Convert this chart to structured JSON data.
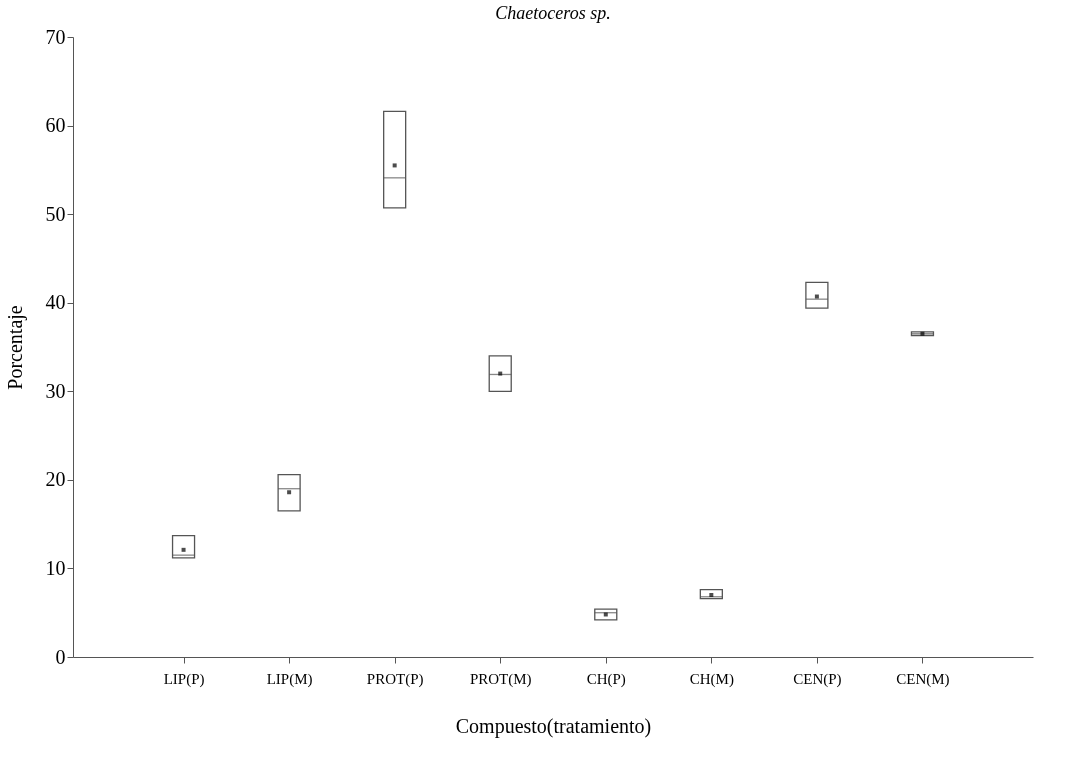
{
  "chart_data": {
    "type": "box",
    "title": "Chaetoceros sp.",
    "xlabel": "Compuesto(tratamiento)",
    "ylabel": "Porcentaje",
    "categories": [
      "LIP(P)",
      "LIP(M)",
      "PROT(P)",
      "PROT(M)",
      "CH(P)",
      "CH(M)",
      "CEN(P)",
      "CEN(M)"
    ],
    "boxes": [
      {
        "low": 11.2,
        "q1": 11.2,
        "median": 11.5,
        "q3": 13.7,
        "high": 13.7,
        "mean": 12.1
      },
      {
        "low": 16.5,
        "q1": 16.5,
        "median": 19.0,
        "q3": 20.6,
        "high": 20.6,
        "mean": 18.6
      },
      {
        "low": 50.7,
        "q1": 50.7,
        "median": 54.1,
        "q3": 61.6,
        "high": 61.6,
        "mean": 55.5
      },
      {
        "low": 30.0,
        "q1": 30.0,
        "median": 31.9,
        "q3": 34.0,
        "high": 34.0,
        "mean": 32.0
      },
      {
        "low": 4.2,
        "q1": 4.2,
        "median": 5.0,
        "q3": 5.4,
        "high": 5.4,
        "mean": 4.8
      },
      {
        "low": 6.6,
        "q1": 6.6,
        "median": 6.8,
        "q3": 7.6,
        "high": 7.6,
        "mean": 7.0
      },
      {
        "low": 39.4,
        "q1": 39.4,
        "median": 40.4,
        "q3": 42.3,
        "high": 42.3,
        "mean": 40.7
      },
      {
        "low": 36.3,
        "q1": 36.3,
        "median": 36.5,
        "q3": 36.7,
        "high": 36.7,
        "mean": 36.5
      }
    ],
    "ylim": [
      0,
      70
    ],
    "yticks": [
      0,
      10,
      20,
      30,
      40,
      50,
      60,
      70
    ],
    "grid": false
  }
}
